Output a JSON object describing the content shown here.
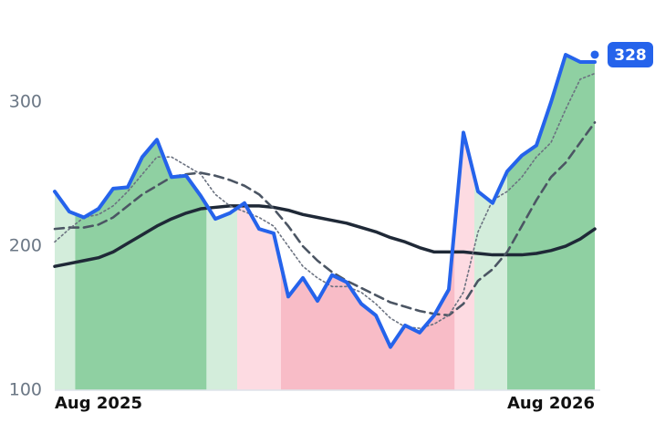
{
  "chart_data": {
    "type": "line",
    "x": [
      0,
      1,
      2,
      3,
      4,
      5,
      6,
      7,
      8,
      9,
      10,
      11,
      12,
      13,
      14,
      15,
      16,
      17,
      18,
      19,
      20,
      21,
      22,
      23,
      24,
      25,
      26,
      27,
      28,
      29,
      30,
      31,
      32,
      33,
      34,
      35,
      36,
      37
    ],
    "xlim": [
      0,
      37
    ],
    "xticks": [
      {
        "value": 0,
        "label": "Aug 2025"
      },
      {
        "value": 37,
        "label": "Aug 2026"
      }
    ],
    "ylim": [
      100,
      340
    ],
    "yticks": [
      100,
      200,
      300
    ],
    "series": [
      {
        "color": "#2563eb",
        "style": "solid",
        "width": 4,
        "values": [
          238,
          224,
          220,
          226,
          240,
          241,
          262,
          274,
          248,
          249,
          235,
          219,
          223,
          230,
          212,
          209,
          165,
          178,
          162,
          180,
          175,
          160,
          152,
          130,
          145,
          140,
          152,
          170,
          279,
          238,
          230,
          252,
          263,
          270,
          300,
          333,
          328,
          328
        ]
      },
      {
        "color": "#6b7280",
        "style": "dotted",
        "width": 1.6,
        "values": [
          203,
          212,
          220,
          222,
          228,
          238,
          250,
          262,
          262,
          256,
          250,
          236,
          228,
          224,
          220,
          214,
          200,
          186,
          178,
          172,
          172,
          168,
          160,
          150,
          144,
          143,
          146,
          152,
          168,
          210,
          232,
          238,
          248,
          262,
          272,
          295,
          316,
          320
        ]
      },
      {
        "color": "#4b5563",
        "style": "dashed",
        "width": 2.6,
        "values": [
          212,
          213,
          213,
          215,
          220,
          228,
          236,
          242,
          248,
          250,
          251,
          249,
          246,
          242,
          236,
          226,
          214,
          200,
          190,
          182,
          176,
          171,
          166,
          161,
          158,
          155,
          153,
          152,
          160,
          176,
          184,
          196,
          214,
          232,
          248,
          258,
          272,
          286
        ]
      },
      {
        "color": "#1f2937",
        "style": "solid",
        "width": 3.5,
        "values": [
          186,
          188,
          190,
          192,
          196,
          202,
          208,
          214,
          219,
          223,
          226,
          227,
          228,
          228,
          228,
          227,
          225,
          222,
          220,
          218,
          216,
          213,
          210,
          206,
          203,
          199,
          196,
          196,
          196,
          195,
          194,
          194,
          194,
          195,
          197,
          200,
          205,
          212
        ]
      }
    ],
    "regions": [
      {
        "start": 0,
        "end": 1.4,
        "color": "#d3eddb"
      },
      {
        "start": 1.4,
        "end": 10.4,
        "color": "#8fd0a2"
      },
      {
        "start": 10.4,
        "end": 12.5,
        "color": "#d3eddb"
      },
      {
        "start": 12.5,
        "end": 15.5,
        "color": "#fddbe2"
      },
      {
        "start": 15.5,
        "end": 27.4,
        "color": "#f8bcc7"
      },
      {
        "start": 27.4,
        "end": 28.75,
        "color": "#fddbe2"
      },
      {
        "start": 28.75,
        "end": 31,
        "color": "#d3eddb"
      },
      {
        "start": 31,
        "end": 37,
        "color": "#8fd0a2"
      }
    ]
  }
}
